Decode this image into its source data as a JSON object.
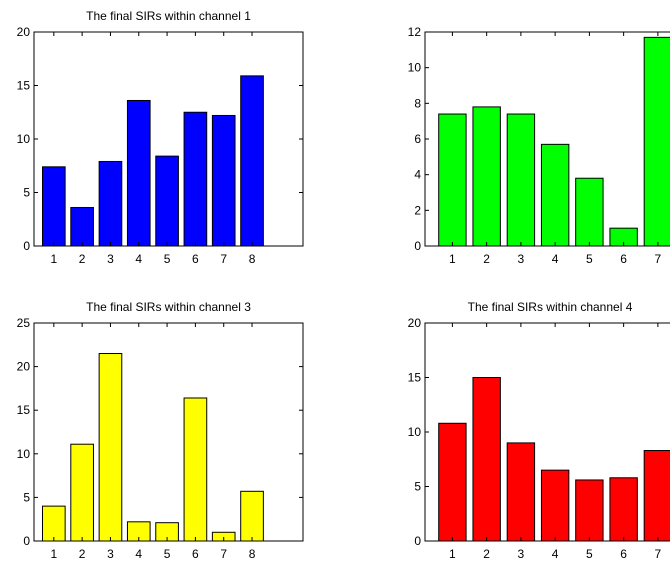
{
  "chart_data": [
    {
      "type": "bar",
      "title": "The final SIRs within channel 1",
      "categories": [
        "1",
        "2",
        "3",
        "4",
        "5",
        "6",
        "7",
        "8"
      ],
      "values": [
        7.4,
        3.6,
        7.9,
        13.6,
        8.4,
        12.5,
        12.2,
        15.9
      ],
      "ylim": [
        0,
        20
      ],
      "yticks": [
        0,
        5,
        10,
        15,
        20
      ],
      "xlim": [
        0.3,
        9.8
      ],
      "color": "#0000ff",
      "grid": false,
      "legend": "none"
    },
    {
      "type": "bar",
      "title": "",
      "categories": [
        "1",
        "2",
        "3",
        "4",
        "5",
        "6",
        "7"
      ],
      "values": [
        7.4,
        7.8,
        7.4,
        5.7,
        3.8,
        1.0,
        11.7
      ],
      "ylim": [
        0,
        12
      ],
      "yticks": [
        0,
        2,
        4,
        6,
        8,
        10,
        12
      ],
      "xlim": [
        0.2,
        7.5
      ],
      "color": "#00ff00",
      "grid": false,
      "legend": "none"
    },
    {
      "type": "bar",
      "title": "The final SIRs within channel 3",
      "categories": [
        "1",
        "2",
        "3",
        "4",
        "5",
        "6",
        "7",
        "8"
      ],
      "values": [
        4.0,
        11.1,
        21.5,
        2.2,
        2.1,
        16.4,
        1.0,
        5.7
      ],
      "ylim": [
        0,
        25
      ],
      "yticks": [
        0,
        5,
        10,
        15,
        20,
        25
      ],
      "xlim": [
        0.3,
        9.8
      ],
      "color": "#ffff00",
      "grid": false,
      "legend": "none"
    },
    {
      "type": "bar",
      "title": "The final SIRs within channel 4",
      "categories": [
        "1",
        "2",
        "3",
        "4",
        "5",
        "6",
        "7"
      ],
      "values": [
        10.8,
        15.0,
        9.0,
        6.5,
        5.6,
        5.8,
        8.3
      ],
      "ylim": [
        0,
        20
      ],
      "yticks": [
        0,
        5,
        10,
        15,
        20
      ],
      "xlim": [
        0.2,
        7.5
      ],
      "color": "#ff0000",
      "grid": false,
      "legend": "none"
    }
  ]
}
